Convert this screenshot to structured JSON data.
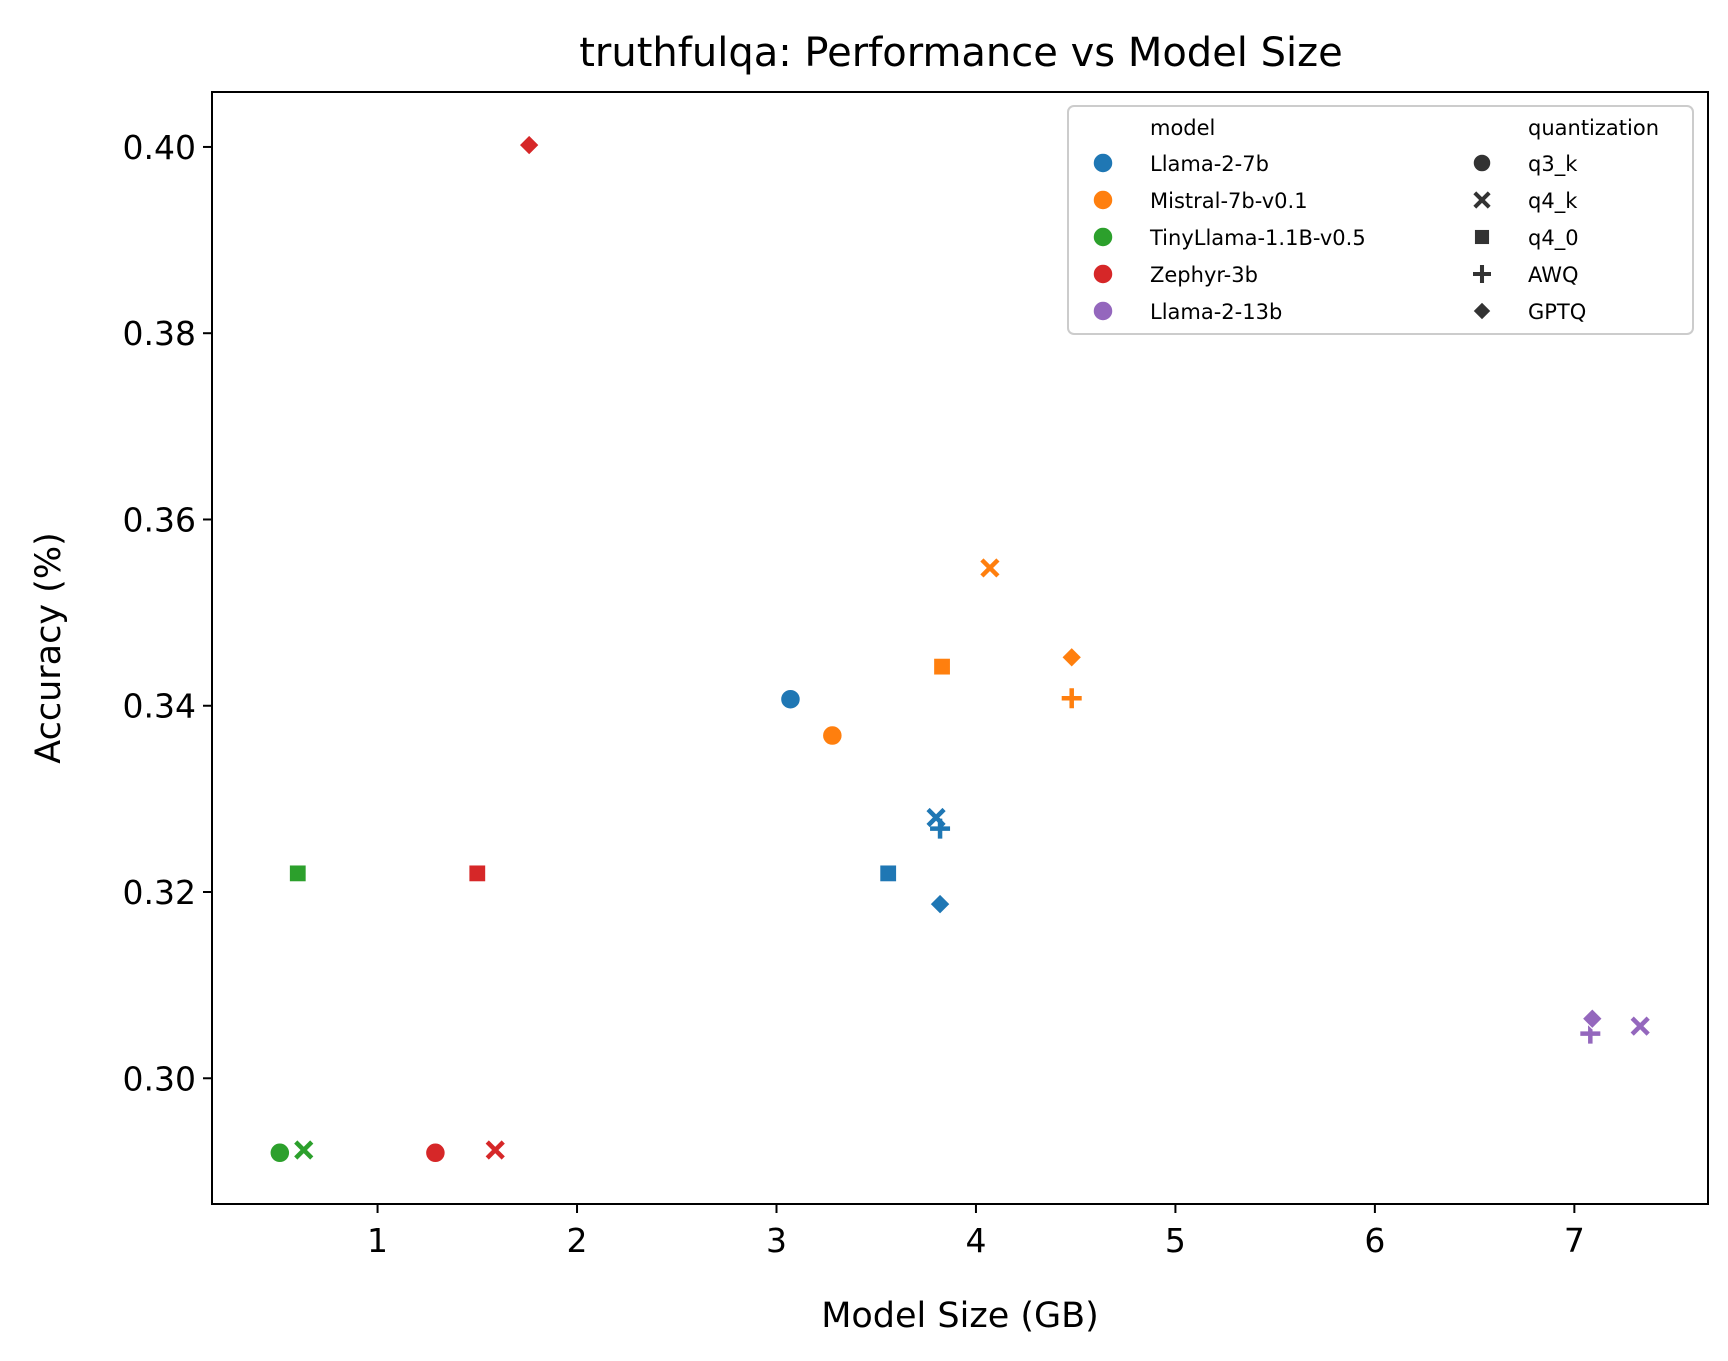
{
  "chart_data": {
    "type": "scatter",
    "title": "truthfulqa: Performance vs Model Size",
    "xlabel": "Model Size (GB)",
    "ylabel": "Accuracy (%)",
    "xlim": [
      0.17,
      7.67
    ],
    "ylim": [
      0.2865,
      0.4059
    ],
    "xticks": [
      1,
      2,
      3,
      4,
      5,
      6,
      7
    ],
    "yticks": [
      0.3,
      0.32,
      0.34,
      0.36,
      0.38,
      0.4
    ],
    "ytick_labels": [
      "0.30",
      "0.32",
      "0.34",
      "0.36",
      "0.38",
      "0.40"
    ],
    "grid": false,
    "legend": {
      "placement": "upper-right",
      "hue_title": "model",
      "style_title": "quantization",
      "models": [
        {
          "name": "Llama-2-7b",
          "color": "#1f77b4"
        },
        {
          "name": "Mistral-7b-v0.1",
          "color": "#ff7f0e"
        },
        {
          "name": "TinyLlama-1.1B-v0.5",
          "color": "#2ca02c"
        },
        {
          "name": "Zephyr-3b",
          "color": "#d62728"
        },
        {
          "name": "Llama-2-13b",
          "color": "#9467bd"
        }
      ],
      "quantizations": [
        {
          "name": "q3_k",
          "marker": "circle"
        },
        {
          "name": "q4_k",
          "marker": "x"
        },
        {
          "name": "q4_0",
          "marker": "square"
        },
        {
          "name": "AWQ",
          "marker": "plus"
        },
        {
          "name": "GPTQ",
          "marker": "diamond"
        }
      ]
    },
    "points": [
      {
        "model": "Llama-2-7b",
        "quantization": "q3_k",
        "x": 3.07,
        "y": 0.3407
      },
      {
        "model": "Llama-2-7b",
        "quantization": "q4_k",
        "x": 3.8,
        "y": 0.328
      },
      {
        "model": "Llama-2-7b",
        "quantization": "q4_0",
        "x": 3.56,
        "y": 0.322
      },
      {
        "model": "Llama-2-7b",
        "quantization": "AWQ",
        "x": 3.82,
        "y": 0.3268
      },
      {
        "model": "Llama-2-7b",
        "quantization": "GPTQ",
        "x": 3.82,
        "y": 0.3187
      },
      {
        "model": "Mistral-7b-v0.1",
        "quantization": "q3_k",
        "x": 3.28,
        "y": 0.3368
      },
      {
        "model": "Mistral-7b-v0.1",
        "quantization": "q4_k",
        "x": 4.07,
        "y": 0.3548
      },
      {
        "model": "Mistral-7b-v0.1",
        "quantization": "q4_0",
        "x": 3.83,
        "y": 0.3442
      },
      {
        "model": "Mistral-7b-v0.1",
        "quantization": "AWQ",
        "x": 4.48,
        "y": 0.3408
      },
      {
        "model": "Mistral-7b-v0.1",
        "quantization": "GPTQ",
        "x": 4.48,
        "y": 0.3452
      },
      {
        "model": "TinyLlama-1.1B-v0.5",
        "quantization": "q3_k",
        "x": 0.51,
        "y": 0.292
      },
      {
        "model": "TinyLlama-1.1B-v0.5",
        "quantization": "q4_k",
        "x": 0.63,
        "y": 0.2923
      },
      {
        "model": "TinyLlama-1.1B-v0.5",
        "quantization": "q4_0",
        "x": 0.6,
        "y": 0.322
      },
      {
        "model": "Zephyr-3b",
        "quantization": "q3_k",
        "x": 1.29,
        "y": 0.292
      },
      {
        "model": "Zephyr-3b",
        "quantization": "q4_k",
        "x": 1.59,
        "y": 0.2923
      },
      {
        "model": "Zephyr-3b",
        "quantization": "q4_0",
        "x": 1.5,
        "y": 0.322
      },
      {
        "model": "Zephyr-3b",
        "quantization": "GPTQ",
        "x": 1.76,
        "y": 0.4002
      },
      {
        "model": "Llama-2-13b",
        "quantization": "q4_k",
        "x": 7.33,
        "y": 0.3056
      },
      {
        "model": "Llama-2-13b",
        "quantization": "AWQ",
        "x": 7.08,
        "y": 0.3048
      },
      {
        "model": "Llama-2-13b",
        "quantization": "GPTQ",
        "x": 7.09,
        "y": 0.3064
      }
    ]
  }
}
